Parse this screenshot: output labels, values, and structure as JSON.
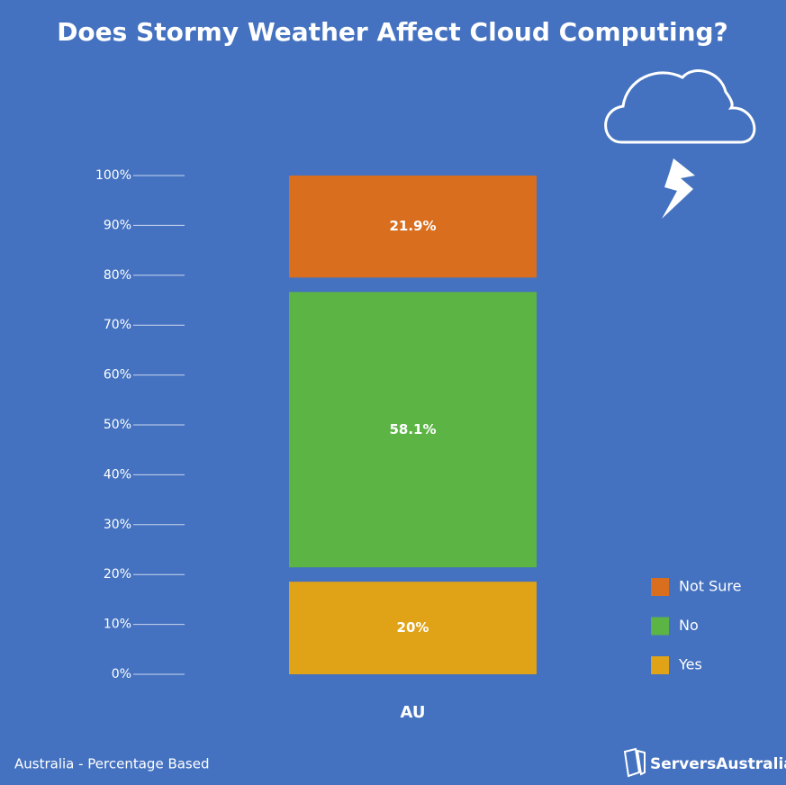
{
  "chart_data": {
    "type": "stacked-bar",
    "title": "Does Stormy Weather Affect Cloud Computing?",
    "categories": [
      "AU"
    ],
    "series": [
      {
        "name": "Yes",
        "color": "#e0a216",
        "values": [
          20
        ],
        "value_labels": [
          "20%"
        ]
      },
      {
        "name": "No",
        "color": "#5cb445",
        "values": [
          58.1
        ],
        "value_labels": [
          "58.1%"
        ]
      },
      {
        "name": "Not Sure",
        "color": "#d96e1f",
        "values": [
          21.9
        ],
        "value_labels": [
          "21.9%"
        ]
      }
    ],
    "ylim": [
      0,
      100
    ],
    "yticks": [
      {
        "value": 0,
        "label": "0%"
      },
      {
        "value": 10,
        "label": "10%"
      },
      {
        "value": 20,
        "label": "20%"
      },
      {
        "value": 30,
        "label": "30%"
      },
      {
        "value": 40,
        "label": "40%"
      },
      {
        "value": 50,
        "label": "50%"
      },
      {
        "value": 60,
        "label": "60%"
      },
      {
        "value": 70,
        "label": "70%"
      },
      {
        "value": 80,
        "label": "80%"
      },
      {
        "value": 90,
        "label": "90%"
      },
      {
        "value": 100,
        "label": "100%"
      }
    ],
    "legend": "right",
    "note": "Australia - Percentage Based",
    "brand": "ServersAustralia"
  }
}
